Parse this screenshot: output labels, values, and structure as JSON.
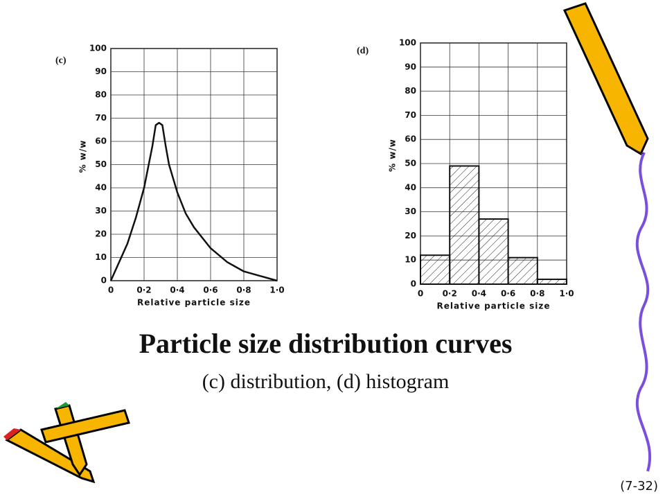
{
  "chart_data": [
    {
      "type": "line",
      "label": "(c)",
      "xlabel": "Relative particle size",
      "ylabel": "% w/w",
      "x": [
        0,
        0.05,
        0.1,
        0.15,
        0.2,
        0.25,
        0.27,
        0.29,
        0.31,
        0.33,
        0.35,
        0.4,
        0.45,
        0.5,
        0.6,
        0.7,
        0.8,
        0.9,
        1.0
      ],
      "values": [
        0,
        8,
        16,
        27,
        40,
        58,
        67,
        68,
        67,
        58,
        50,
        38,
        29,
        23,
        14,
        8,
        4,
        2,
        0
      ],
      "color": "#111111",
      "xlim": [
        0,
        1
      ],
      "ylim": [
        0,
        100
      ],
      "xticks": [
        0,
        {
          "value": 0.2,
          "label": "0·2"
        },
        {
          "value": 0.4,
          "label": "0·4"
        },
        {
          "value": 0.6,
          "label": "0·6"
        },
        {
          "value": 0.8,
          "label": "0·8"
        },
        {
          "value": 1,
          "label": "1·0"
        }
      ],
      "yticks": [
        0,
        10,
        20,
        30,
        40,
        50,
        60,
        70,
        80,
        90,
        100
      ],
      "grid": true
    },
    {
      "type": "histogram",
      "label": "(d)",
      "xlabel": "Relative particle size",
      "ylabel": "% w/w",
      "bins": [
        0,
        0.2,
        0.4,
        0.6,
        0.8,
        1.0
      ],
      "values": [
        12,
        49,
        27,
        11,
        2
      ],
      "color": "#111111",
      "xlim": [
        0,
        1
      ],
      "ylim": [
        0,
        100
      ],
      "xticks": [
        0,
        {
          "value": 0.2,
          "label": "0·2"
        },
        {
          "value": 0.4,
          "label": "0·4"
        },
        {
          "value": 0.6,
          "label": "0·6"
        },
        {
          "value": 0.8,
          "label": "0·8"
        },
        {
          "value": 1,
          "label": "1·0"
        }
      ],
      "yticks": [
        0,
        10,
        20,
        30,
        40,
        50,
        60,
        70,
        80,
        90,
        100
      ],
      "grid": true
    }
  ],
  "caption": {
    "title": "Particle size distribution curves",
    "subtitle": "(c) distribution, (d) histogram"
  },
  "page_number": "(7-32)"
}
